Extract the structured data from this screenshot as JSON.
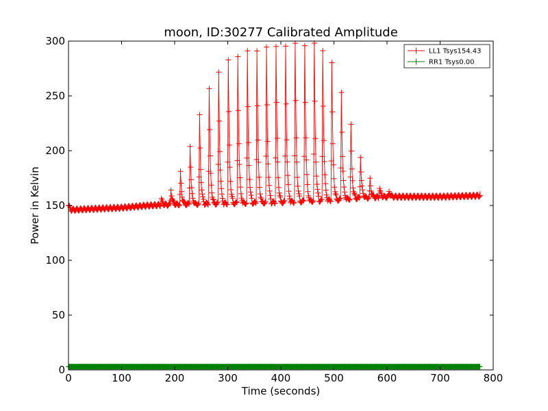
{
  "chart_data": {
    "type": "line",
    "title": "moon, ID:30277 Calibrated Amplitude",
    "xlabel": "Time (seconds)",
    "ylabel": "Power in Kelvin",
    "xlim": [
      0,
      800
    ],
    "ylim": [
      0,
      300
    ],
    "xticks": [
      "0",
      "100",
      "200",
      "300",
      "400",
      "500",
      "600",
      "700",
      "800"
    ],
    "yticks": [
      "0",
      "50",
      "100",
      "150",
      "200",
      "250",
      "300"
    ],
    "grid": false,
    "legend_position": "top-right",
    "series": [
      {
        "name": "LL1 Tsys154.43",
        "color": "#ff0000",
        "marker": "+",
        "x_range": [
          0,
          775
        ],
        "baseline": [
          [
            0,
            150
          ],
          [
            5,
            146
          ],
          [
            50,
            147
          ],
          [
            100,
            148
          ],
          [
            150,
            150
          ],
          [
            200,
            151
          ],
          [
            300,
            152
          ],
          [
            400,
            153
          ],
          [
            500,
            155
          ],
          [
            550,
            157
          ],
          [
            600,
            158
          ],
          [
            700,
            158
          ],
          [
            775,
            159
          ]
        ],
        "peaks": [
          {
            "t": 175,
            "v": 156
          },
          {
            "t": 193,
            "v": 165
          },
          {
            "t": 211,
            "v": 180
          },
          {
            "t": 229,
            "v": 205
          },
          {
            "t": 247,
            "v": 232
          },
          {
            "t": 265,
            "v": 257
          },
          {
            "t": 283,
            "v": 272
          },
          {
            "t": 301,
            "v": 282
          },
          {
            "t": 319,
            "v": 287
          },
          {
            "t": 337,
            "v": 290
          },
          {
            "t": 355,
            "v": 292
          },
          {
            "t": 373,
            "v": 294
          },
          {
            "t": 391,
            "v": 295
          },
          {
            "t": 409,
            "v": 296
          },
          {
            "t": 427,
            "v": 297
          },
          {
            "t": 445,
            "v": 297
          },
          {
            "t": 463,
            "v": 297
          },
          {
            "t": 479,
            "v": 292
          },
          {
            "t": 496,
            "v": 280
          },
          {
            "t": 514,
            "v": 254
          },
          {
            "t": 532,
            "v": 223
          },
          {
            "t": 550,
            "v": 195
          },
          {
            "t": 568,
            "v": 174
          },
          {
            "t": 586,
            "v": 166
          },
          {
            "t": 604,
            "v": 163
          }
        ],
        "end_value": 163
      },
      {
        "name": "RR1 Tsys0.00",
        "color": "#008000",
        "marker": "+",
        "x_range": [
          0,
          775
        ],
        "values_constant": 3
      }
    ]
  }
}
